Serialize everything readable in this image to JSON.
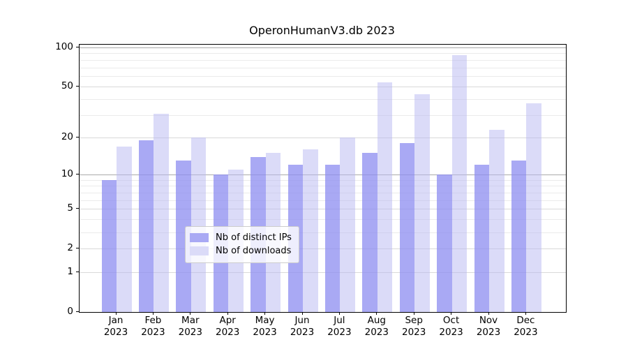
{
  "chart_data": {
    "type": "bar",
    "title": "OperonHumanV3.db 2023",
    "y_scale": "log1p",
    "ylim": [
      0,
      105
    ],
    "grid": true,
    "legend_position": "lower-center",
    "y_ticks": [
      0,
      1,
      2,
      5,
      10,
      20,
      50,
      100
    ],
    "minor_gridlines": [
      3,
      4,
      6,
      7,
      8,
      9,
      30,
      40,
      60,
      70,
      80,
      90
    ],
    "categories": [
      "Jan",
      "Feb",
      "Mar",
      "Apr",
      "May",
      "Jun",
      "Jul",
      "Aug",
      "Sep",
      "Oct",
      "Nov",
      "Dec"
    ],
    "year_label": "2023",
    "series": [
      {
        "name": "Nb of distinct IPs",
        "color": "#a9a9f4",
        "fill": "rgba(140,140,240,0.75)",
        "values": [
          9,
          19,
          13,
          10,
          14,
          12,
          12,
          15,
          18,
          10,
          12,
          13
        ]
      },
      {
        "name": "Nb of downloads",
        "color": "#dbdbf8",
        "fill": "rgba(183,183,242,0.5)",
        "values": [
          17,
          31,
          20,
          11,
          15,
          16,
          20,
          54,
          44,
          88,
          23,
          37
        ]
      }
    ],
    "grid_colors": {
      "major": "#aaaaaa",
      "mid": "#d9d9d9",
      "minor": "#ebebeb"
    }
  }
}
